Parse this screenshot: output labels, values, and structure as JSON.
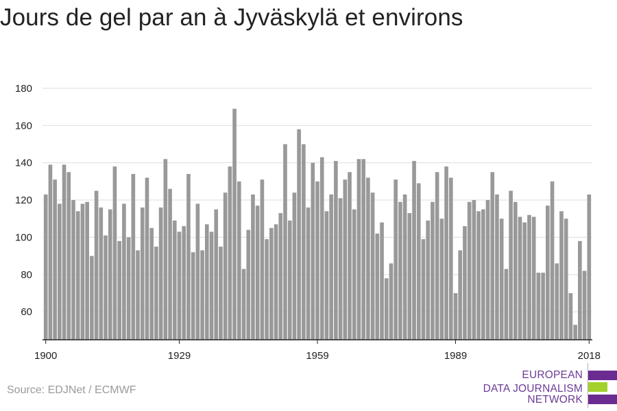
{
  "title": "Jours de gel par an à Jyväskylä et environs",
  "source": "Source: EDJNet / ECMWF",
  "logo": {
    "lines": [
      "EUROPEAN",
      "DATA JOURNALISM",
      "NETWORK"
    ],
    "colors": {
      "purple": "#6b2c91",
      "green": "#a3d12b"
    }
  },
  "colors": {
    "bar": "#999999",
    "grid": "#dddddd",
    "axis": "#222222",
    "text": "#222222"
  },
  "chart_data": {
    "type": "bar",
    "title": "Jours de gel par an à Jyväskylä et environs",
    "xlabel": "",
    "ylabel": "",
    "x": [
      1900,
      1901,
      1902,
      1903,
      1904,
      1905,
      1906,
      1907,
      1908,
      1909,
      1910,
      1911,
      1912,
      1913,
      1914,
      1915,
      1916,
      1917,
      1918,
      1919,
      1920,
      1921,
      1922,
      1923,
      1924,
      1925,
      1926,
      1927,
      1928,
      1929,
      1930,
      1931,
      1932,
      1933,
      1934,
      1935,
      1936,
      1937,
      1938,
      1939,
      1940,
      1941,
      1942,
      1943,
      1944,
      1945,
      1946,
      1947,
      1948,
      1949,
      1950,
      1951,
      1952,
      1953,
      1954,
      1955,
      1956,
      1957,
      1958,
      1959,
      1960,
      1961,
      1962,
      1963,
      1964,
      1965,
      1966,
      1967,
      1968,
      1969,
      1970,
      1971,
      1972,
      1973,
      1974,
      1975,
      1976,
      1977,
      1978,
      1979,
      1980,
      1981,
      1982,
      1983,
      1984,
      1985,
      1986,
      1987,
      1988,
      1989,
      1990,
      1991,
      1992,
      1993,
      1994,
      1995,
      1996,
      1997,
      1998,
      1999,
      2000,
      2001,
      2002,
      2003,
      2004,
      2005,
      2006,
      2007,
      2008,
      2009,
      2010,
      2011,
      2012,
      2013,
      2014,
      2015,
      2016,
      2017,
      2018
    ],
    "values": [
      123,
      139,
      131,
      118,
      139,
      135,
      120,
      114,
      118,
      119,
      90,
      125,
      116,
      101,
      115,
      138,
      98,
      118,
      100,
      134,
      93,
      116,
      132,
      105,
      95,
      116,
      142,
      126,
      109,
      103,
      106,
      134,
      92,
      118,
      93,
      107,
      103,
      115,
      95,
      124,
      138,
      169,
      130,
      83,
      104,
      123,
      117,
      131,
      99,
      105,
      107,
      113,
      150,
      109,
      124,
      158,
      150,
      116,
      140,
      130,
      143,
      114,
      123,
      141,
      121,
      131,
      135,
      115,
      142,
      142,
      132,
      124,
      102,
      108,
      78,
      86,
      131,
      119,
      123,
      113,
      141,
      129,
      99,
      109,
      119,
      135,
      110,
      138,
      132,
      70,
      93,
      106,
      119,
      120,
      114,
      115,
      120,
      135,
      123,
      110,
      83,
      125,
      119,
      111,
      108,
      112,
      111,
      81,
      81,
      117,
      130,
      86,
      114,
      110,
      70,
      53,
      98,
      82,
      123
    ],
    "xticks": [
      1900,
      1929,
      1959,
      1989,
      2018
    ],
    "yticks": [
      60,
      80,
      100,
      120,
      140,
      160,
      180
    ],
    "ylim": [
      45,
      184
    ],
    "xlim": [
      1899.3,
      2018.7
    ],
    "grid": true,
    "legend": "none"
  }
}
